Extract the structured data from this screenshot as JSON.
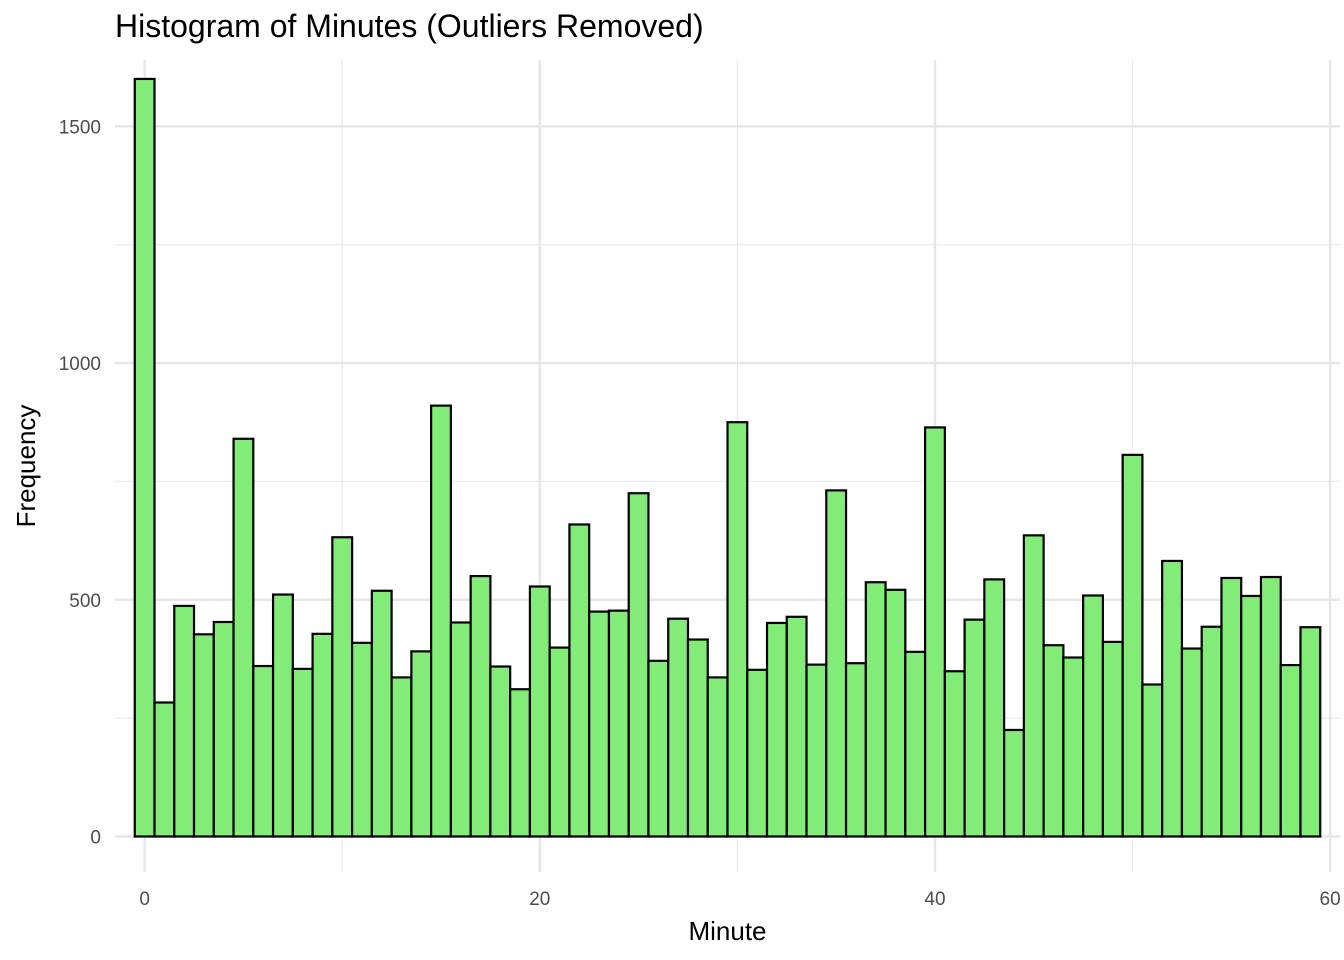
{
  "chart_data": {
    "type": "bar",
    "title": "Histogram of Minutes (Outliers Removed)",
    "xlabel": "Minute",
    "ylabel": "Frequency",
    "xlim": [
      -1.5,
      60.5
    ],
    "ylim": [
      -75,
      1640
    ],
    "x_ticks": [
      0,
      20,
      40,
      60
    ],
    "y_ticks": [
      0,
      500,
      1000,
      1500
    ],
    "grid": true,
    "legend": "none",
    "bar_color": "#83eb77",
    "bar_border_color": "#000000",
    "bins": [
      0,
      1,
      2,
      3,
      4,
      5,
      6,
      7,
      8,
      9,
      10,
      11,
      12,
      13,
      14,
      15,
      16,
      17,
      18,
      19,
      20,
      21,
      22,
      23,
      24,
      25,
      26,
      27,
      28,
      29,
      30,
      31,
      32,
      33,
      34,
      35,
      36,
      37,
      38,
      39,
      40,
      41,
      42,
      43,
      44,
      45,
      46,
      47,
      48,
      49,
      50,
      51,
      52,
      53,
      54,
      55,
      56,
      57,
      58,
      59
    ],
    "values": [
      1600,
      283,
      487,
      427,
      453,
      840,
      360,
      511,
      354,
      428,
      632,
      409,
      519,
      336,
      391,
      910,
      452,
      550,
      359,
      311,
      528,
      399,
      659,
      475,
      477,
      725,
      371,
      460,
      416,
      336,
      875,
      352,
      451,
      464,
      363,
      731,
      366,
      537,
      521,
      390,
      864,
      349,
      458,
      543,
      225,
      636,
      404,
      378,
      509,
      411,
      806,
      321,
      582,
      397,
      443,
      546,
      508,
      548,
      362,
      442
    ]
  }
}
